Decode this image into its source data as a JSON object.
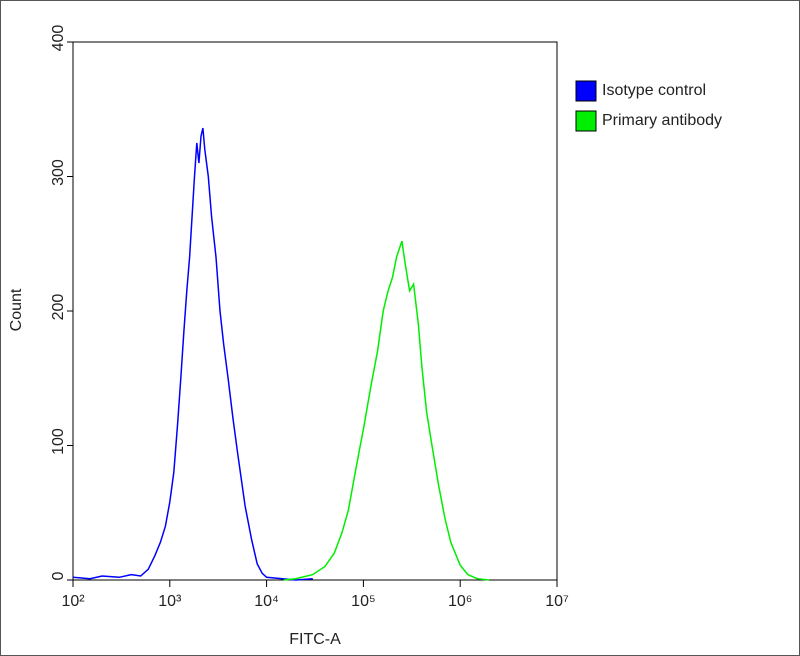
{
  "chart_data": {
    "type": "line",
    "xscale": "log",
    "xlabel": "FITC-A",
    "ylabel": "Count",
    "xlim": [
      100,
      10000000
    ],
    "xticks": [
      {
        "value": 100,
        "label": "10²"
      },
      {
        "value": 1000,
        "label": "10³"
      },
      {
        "value": 10000,
        "label": "10⁴"
      },
      {
        "value": 100000,
        "label": "10⁵"
      },
      {
        "value": 1000000,
        "label": "10⁶"
      },
      {
        "value": 10000000,
        "label": "10⁷"
      }
    ],
    "ylim": [
      0,
      400
    ],
    "yticks": [
      0,
      100,
      200,
      300,
      400
    ],
    "legend": "right",
    "series": [
      {
        "name": "Isotype control",
        "color": "#0000ff",
        "x": [
          100,
          150,
          200,
          300,
          400,
          500,
          600,
          700,
          800,
          900,
          1000,
          1100,
          1200,
          1300,
          1400,
          1500,
          1600,
          1800,
          1900,
          2000,
          2100,
          2200,
          2300,
          2500,
          2700,
          3000,
          3300,
          3600,
          4000,
          4500,
          5000,
          6000,
          7000,
          8000,
          9000,
          10000,
          20000,
          30000
        ],
        "values": [
          2,
          1,
          3,
          2,
          4,
          3,
          8,
          18,
          28,
          40,
          58,
          80,
          115,
          150,
          185,
          215,
          240,
          300,
          325,
          310,
          330,
          336,
          320,
          300,
          270,
          240,
          200,
          175,
          150,
          120,
          95,
          55,
          30,
          12,
          5,
          2,
          0,
          1
        ]
      },
      {
        "name": "Primary antibody",
        "color": "#00ee00",
        "x": [
          15000,
          20000,
          30000,
          40000,
          50000,
          60000,
          70000,
          80000,
          90000,
          100000,
          120000,
          140000,
          160000,
          180000,
          200000,
          220000,
          250000,
          270000,
          300000,
          330000,
          370000,
          400000,
          450000,
          500000,
          600000,
          700000,
          800000,
          1000000,
          1200000,
          1500000,
          2000000
        ],
        "values": [
          0,
          1,
          4,
          10,
          20,
          35,
          52,
          75,
          95,
          112,
          145,
          170,
          200,
          215,
          225,
          240,
          252,
          235,
          215,
          220,
          190,
          160,
          125,
          104,
          70,
          45,
          28,
          11,
          4,
          1,
          0
        ]
      }
    ]
  }
}
